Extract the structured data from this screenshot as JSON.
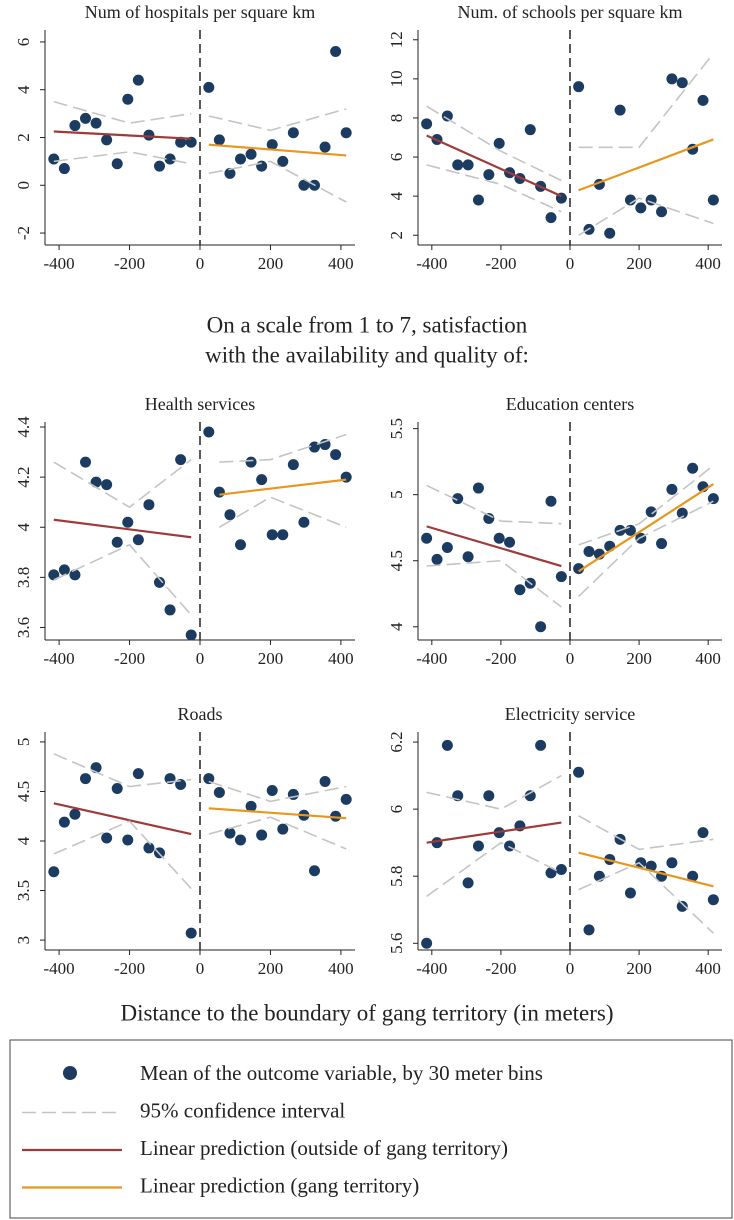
{
  "chart_data": [
    {
      "type": "scatter",
      "title": "Num of hospitals per square km",
      "xlim": [
        -440,
        440
      ],
      "xticks": [
        -400,
        -200,
        0,
        200,
        400
      ],
      "ylim": [
        -2.5,
        6.5
      ],
      "yticks": [
        -2,
        0,
        2,
        4,
        6
      ],
      "cutoff": 0,
      "series": [
        {
          "style": "dots",
          "color": "#1b3b60",
          "x": [
            -415,
            -385,
            -355,
            -325,
            -295,
            -265,
            -235,
            -205,
            -175,
            -145,
            -115,
            -85,
            -55,
            -25,
            25,
            55,
            85,
            115,
            145,
            175,
            205,
            235,
            265,
            295,
            325,
            355,
            385,
            415
          ],
          "values": [
            1.1,
            0.7,
            2.5,
            2.8,
            2.6,
            1.9,
            0.9,
            3.6,
            4.4,
            2.1,
            0.8,
            1.1,
            1.8,
            1.8,
            4.1,
            1.9,
            0.5,
            1.1,
            1.3,
            0.8,
            1.7,
            1.0,
            2.2,
            0.0,
            0.0,
            1.6,
            5.6,
            2.2
          ]
        },
        {
          "style": "line",
          "color": "#9e3a3a",
          "x": [
            -415,
            -25
          ],
          "values": [
            2.25,
            1.95
          ]
        },
        {
          "style": "line",
          "color": "#e8961e",
          "x": [
            25,
            415
          ],
          "values": [
            1.7,
            1.25
          ]
        },
        {
          "style": "dashed",
          "color": "#c4c4c4",
          "x": [
            -415,
            -200,
            -25
          ],
          "values": [
            3.5,
            2.6,
            3.0
          ]
        },
        {
          "style": "dashed",
          "color": "#c4c4c4",
          "x": [
            -415,
            -200,
            -25
          ],
          "values": [
            1.0,
            1.4,
            0.9
          ]
        },
        {
          "style": "dashed",
          "color": "#c4c4c4",
          "x": [
            25,
            200,
            415
          ],
          "values": [
            2.9,
            2.3,
            3.2
          ]
        },
        {
          "style": "dashed",
          "color": "#c4c4c4",
          "x": [
            25,
            200,
            415
          ],
          "values": [
            0.5,
            1.0,
            -0.7
          ]
        }
      ]
    },
    {
      "type": "scatter",
      "title": "Num. of schools per square km",
      "xlim": [
        -440,
        440
      ],
      "xticks": [
        -400,
        -200,
        0,
        200,
        400
      ],
      "ylim": [
        1.5,
        12.5
      ],
      "yticks": [
        2,
        4,
        6,
        8,
        10,
        12
      ],
      "cutoff": 0,
      "series": [
        {
          "style": "dots",
          "color": "#1b3b60",
          "x": [
            -415,
            -385,
            -355,
            -325,
            -295,
            -265,
            -235,
            -205,
            -175,
            -145,
            -115,
            -85,
            -55,
            -25,
            25,
            55,
            85,
            115,
            145,
            175,
            205,
            235,
            265,
            295,
            325,
            355,
            385,
            415
          ],
          "values": [
            7.7,
            6.9,
            8.1,
            5.6,
            5.6,
            3.8,
            5.1,
            6.7,
            5.2,
            4.9,
            7.4,
            4.5,
            2.9,
            3.9,
            9.6,
            2.3,
            4.6,
            2.1,
            8.4,
            3.8,
            3.4,
            3.8,
            3.2,
            10.0,
            9.8,
            6.4,
            8.9,
            3.8
          ]
        },
        {
          "style": "line",
          "color": "#9e3a3a",
          "x": [
            -415,
            -25
          ],
          "values": [
            7.1,
            4.0
          ]
        },
        {
          "style": "line",
          "color": "#e8961e",
          "x": [
            25,
            415
          ],
          "values": [
            4.3,
            6.9
          ]
        },
        {
          "style": "dashed",
          "color": "#c4c4c4",
          "x": [
            -415,
            -200,
            -25
          ],
          "values": [
            8.6,
            6.3,
            4.8
          ]
        },
        {
          "style": "dashed",
          "color": "#c4c4c4",
          "x": [
            -415,
            -200,
            -25
          ],
          "values": [
            5.6,
            4.6,
            3.2
          ]
        },
        {
          "style": "dashed",
          "color": "#c4c4c4",
          "x": [
            25,
            200,
            415
          ],
          "values": [
            6.5,
            6.5,
            11.3
          ]
        },
        {
          "style": "dashed",
          "color": "#c4c4c4",
          "x": [
            25,
            200,
            415
          ],
          "values": [
            2.0,
            3.9,
            2.6
          ]
        }
      ]
    },
    {
      "type": "scatter",
      "title": "Health services",
      "xlim": [
        -440,
        440
      ],
      "xticks": [
        -400,
        -200,
        0,
        200,
        400
      ],
      "ylim": [
        3.55,
        4.42
      ],
      "yticks": [
        3.6,
        3.8,
        4,
        4.2,
        4.4
      ],
      "cutoff": 0,
      "series": [
        {
          "style": "dots",
          "color": "#1b3b60",
          "x": [
            -415,
            -385,
            -355,
            -325,
            -295,
            -265,
            -235,
            -205,
            -175,
            -145,
            -115,
            -85,
            -55,
            -25,
            25,
            55,
            85,
            115,
            145,
            175,
            205,
            235,
            265,
            295,
            325,
            355,
            385,
            415
          ],
          "values": [
            3.81,
            3.83,
            3.81,
            4.26,
            4.18,
            4.17,
            3.94,
            4.02,
            3.95,
            4.09,
            3.78,
            3.67,
            4.27,
            3.57,
            4.38,
            4.14,
            4.05,
            3.93,
            4.26,
            4.19,
            3.97,
            3.97,
            4.25,
            4.02,
            4.32,
            4.33,
            4.29,
            4.2
          ]
        },
        {
          "style": "line",
          "color": "#9e3a3a",
          "x": [
            -415,
            -25
          ],
          "values": [
            4.03,
            3.96
          ]
        },
        {
          "style": "line",
          "color": "#e8961e",
          "x": [
            55,
            415
          ],
          "values": [
            4.13,
            4.19
          ]
        },
        {
          "style": "dashed",
          "color": "#c4c4c4",
          "x": [
            -415,
            -200,
            -25
          ],
          "values": [
            4.26,
            4.08,
            4.27
          ]
        },
        {
          "style": "dashed",
          "color": "#c4c4c4",
          "x": [
            -415,
            -200,
            -25
          ],
          "values": [
            3.79,
            3.93,
            3.65
          ]
        },
        {
          "style": "dashed",
          "color": "#c4c4c4",
          "x": [
            55,
            200,
            415
          ],
          "values": [
            4.26,
            4.27,
            4.37
          ]
        },
        {
          "style": "dashed",
          "color": "#c4c4c4",
          "x": [
            55,
            200,
            415
          ],
          "values": [
            4.0,
            4.12,
            4.0
          ]
        }
      ]
    },
    {
      "type": "scatter",
      "title": "Education centers",
      "xlim": [
        -440,
        440
      ],
      "xticks": [
        -400,
        -200,
        0,
        200,
        400
      ],
      "ylim": [
        3.9,
        5.55
      ],
      "yticks": [
        4,
        4.5,
        5,
        5.5
      ],
      "cutoff": 0,
      "series": [
        {
          "style": "dots",
          "color": "#1b3b60",
          "x": [
            -415,
            -385,
            -355,
            -325,
            -295,
            -265,
            -235,
            -205,
            -175,
            -145,
            -115,
            -85,
            -55,
            -25,
            25,
            55,
            85,
            115,
            145,
            175,
            205,
            235,
            265,
            295,
            325,
            355,
            385,
            415
          ],
          "values": [
            4.67,
            4.51,
            4.6,
            4.97,
            4.53,
            5.05,
            4.82,
            4.67,
            4.64,
            4.28,
            4.33,
            4.0,
            4.95,
            4.38,
            4.44,
            4.57,
            4.55,
            4.61,
            4.73,
            4.73,
            4.67,
            4.87,
            4.63,
            5.04,
            4.86,
            5.2,
            5.06,
            4.97
          ]
        },
        {
          "style": "line",
          "color": "#9e3a3a",
          "x": [
            -415,
            -25
          ],
          "values": [
            4.76,
            4.46
          ]
        },
        {
          "style": "line",
          "color": "#e8961e",
          "x": [
            25,
            415
          ],
          "values": [
            4.42,
            5.08
          ]
        },
        {
          "style": "dashed",
          "color": "#c4c4c4",
          "x": [
            -415,
            -200,
            -25
          ],
          "values": [
            5.07,
            4.8,
            4.78
          ]
        },
        {
          "style": "dashed",
          "color": "#c4c4c4",
          "x": [
            -415,
            -200,
            -25
          ],
          "values": [
            4.46,
            4.5,
            4.15
          ]
        },
        {
          "style": "dashed",
          "color": "#c4c4c4",
          "x": [
            25,
            200,
            415
          ],
          "values": [
            4.62,
            4.78,
            5.22
          ]
        },
        {
          "style": "dashed",
          "color": "#c4c4c4",
          "x": [
            25,
            200,
            415
          ],
          "values": [
            4.23,
            4.67,
            4.95
          ]
        }
      ]
    },
    {
      "type": "scatter",
      "title": "Roads",
      "xlim": [
        -440,
        440
      ],
      "xticks": [
        -400,
        -200,
        0,
        200,
        400
      ],
      "ylim": [
        2.9,
        5.1
      ],
      "yticks": [
        3,
        3.5,
        4,
        4.5,
        5
      ],
      "cutoff": 0,
      "series": [
        {
          "style": "dots",
          "color": "#1b3b60",
          "x": [
            -415,
            -385,
            -355,
            -325,
            -295,
            -265,
            -235,
            -205,
            -175,
            -145,
            -115,
            -85,
            -55,
            -25,
            25,
            55,
            85,
            115,
            145,
            175,
            205,
            235,
            265,
            295,
            325,
            355,
            385,
            415
          ],
          "values": [
            3.69,
            4.19,
            4.27,
            4.63,
            4.74,
            4.03,
            4.53,
            4.01,
            4.68,
            3.93,
            3.88,
            4.63,
            4.57,
            3.07,
            4.63,
            4.49,
            4.08,
            4.01,
            4.35,
            4.06,
            4.51,
            4.12,
            4.47,
            4.26,
            3.7,
            4.6,
            4.25,
            4.42
          ]
        },
        {
          "style": "line",
          "color": "#9e3a3a",
          "x": [
            -415,
            -25
          ],
          "values": [
            4.38,
            4.07
          ]
        },
        {
          "style": "line",
          "color": "#e8961e",
          "x": [
            25,
            415
          ],
          "values": [
            4.33,
            4.23
          ]
        },
        {
          "style": "dashed",
          "color": "#c4c4c4",
          "x": [
            -415,
            -200,
            -25
          ],
          "values": [
            4.88,
            4.55,
            4.62
          ]
        },
        {
          "style": "dashed",
          "color": "#c4c4c4",
          "x": [
            -415,
            -200,
            -25
          ],
          "values": [
            3.87,
            4.2,
            3.52
          ]
        },
        {
          "style": "dashed",
          "color": "#c4c4c4",
          "x": [
            25,
            200,
            415
          ],
          "values": [
            4.6,
            4.4,
            4.55
          ]
        },
        {
          "style": "dashed",
          "color": "#c4c4c4",
          "x": [
            25,
            200,
            415
          ],
          "values": [
            4.07,
            4.24,
            3.92
          ]
        }
      ]
    },
    {
      "type": "scatter",
      "title": "Electricity service",
      "xlim": [
        -440,
        440
      ],
      "xticks": [
        -400,
        -200,
        0,
        200,
        400
      ],
      "ylim": [
        5.58,
        6.23
      ],
      "yticks": [
        5.6,
        5.8,
        6,
        6.2
      ],
      "cutoff": 0,
      "series": [
        {
          "style": "dots",
          "color": "#1b3b60",
          "x": [
            -415,
            -385,
            -355,
            -325,
            -295,
            -265,
            -235,
            -205,
            -175,
            -145,
            -115,
            -85,
            -55,
            -25,
            25,
            55,
            85,
            115,
            145,
            175,
            205,
            235,
            265,
            295,
            325,
            355,
            385,
            415
          ],
          "values": [
            5.6,
            5.9,
            6.19,
            6.04,
            5.78,
            5.89,
            6.04,
            5.93,
            5.89,
            5.95,
            6.04,
            6.19,
            5.81,
            5.82,
            6.11,
            5.64,
            5.8,
            5.85,
            5.91,
            5.75,
            5.84,
            5.83,
            5.8,
            5.84,
            5.71,
            5.8,
            5.93,
            5.73
          ]
        },
        {
          "style": "line",
          "color": "#9e3a3a",
          "x": [
            -415,
            -25
          ],
          "values": [
            5.9,
            5.96
          ]
        },
        {
          "style": "line",
          "color": "#e8961e",
          "x": [
            25,
            415
          ],
          "values": [
            5.87,
            5.77
          ]
        },
        {
          "style": "dashed",
          "color": "#c4c4c4",
          "x": [
            -415,
            -200,
            -25
          ],
          "values": [
            6.05,
            6.0,
            6.1
          ]
        },
        {
          "style": "dashed",
          "color": "#c4c4c4",
          "x": [
            -415,
            -200,
            -25
          ],
          "values": [
            5.74,
            5.9,
            5.81
          ]
        },
        {
          "style": "dashed",
          "color": "#c4c4c4",
          "x": [
            25,
            200,
            415
          ],
          "values": [
            5.98,
            5.88,
            5.91
          ]
        },
        {
          "style": "dashed",
          "color": "#c4c4c4",
          "x": [
            25,
            200,
            415
          ],
          "values": [
            5.76,
            5.84,
            5.63
          ]
        }
      ]
    }
  ],
  "heading": [
    "On a scale from 1 to 7, satisfaction",
    "with the availability and quality of:"
  ],
  "xlabel": "Distance to the boundary of gang territory (in meters)",
  "legend": [
    {
      "label": "Mean of the outcome variable, by 30 meter bins",
      "style": "dots",
      "color": "#1b3b60"
    },
    {
      "label": "95% confidence interval",
      "style": "dashed",
      "color": "#c4c4c4"
    },
    {
      "label": "Linear prediction (outside of gang territory)",
      "style": "line",
      "color": "#9e3a3a"
    },
    {
      "label": "Linear prediction (gang territory)",
      "style": "line",
      "color": "#e8961e"
    }
  ]
}
